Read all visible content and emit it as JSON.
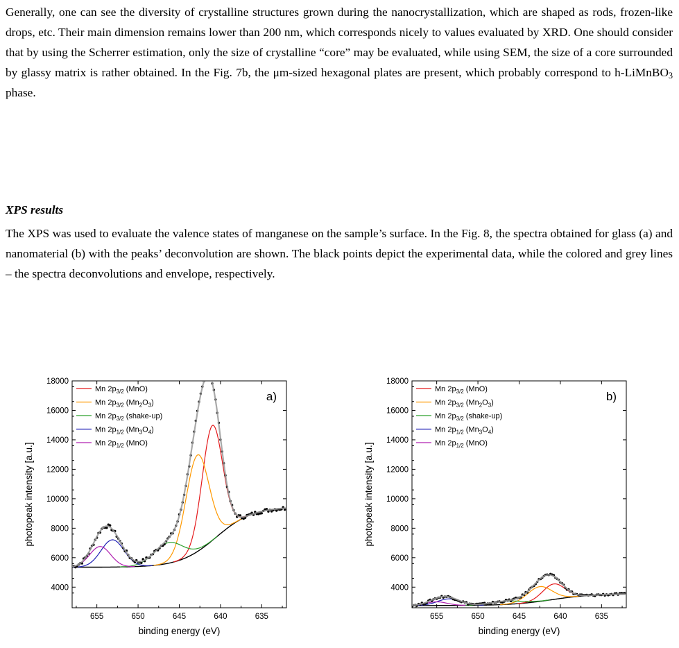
{
  "paragraph1": {
    "before_formula": "Generally, one can see the diversity of crystalline structures grown during the nanocrystallization, which are shaped as rods, frozen-like drops, etc. Their main dimension remains lower than 200 nm, which corresponds nicely to values evaluated by XRD. One should consider that by using the Scherrer estimation, only the size of crystalline “core” may be evaluated, while using SEM, the size of a core surrounded by glassy matrix is rather obtained. In the Fig. 7b, the μm-sized hexagonal plates are present, which probably correspond to h-LiMnBO",
    "formula_sub": "3",
    "after_formula": " phase."
  },
  "heading": "XPS results",
  "paragraph2": "The XPS was used to evaluate the valence states of manganese on the sample’s surface. In the Fig. 8, the spectra obtained for glass (a) and nanomaterial (b) with the peaks’ deconvolution are shown. The black points depict the experimental data, while the colored and grey lines – the spectra deconvolutions and envelope, respectively.",
  "legend": [
    {
      "main": "Mn 2p",
      "sub": "3/2",
      "suffix": " (MnO)",
      "color": "#e41a1c"
    },
    {
      "main": "Mn 2p",
      "sub": "3/2",
      "suffix": " (Mn",
      "sub2": "2",
      "suffix2": "O",
      "sub3": "3",
      "suffix3": ")",
      "color": "#ff9900"
    },
    {
      "main": "Mn 2p",
      "sub": "3/2",
      "suffix": " (shake-up)",
      "color": "#2ca02c"
    },
    {
      "main": "Mn 2p",
      "sub": "1/2",
      "suffix": " (Mn",
      "sub2": "3",
      "suffix2": "O",
      "sub3": "4",
      "suffix3": ")",
      "color": "#1f1fb4"
    },
    {
      "main": "Mn 2p",
      "sub": "1/2",
      "suffix": " (MnO)",
      "color": "#b020b0"
    }
  ],
  "chart_data": [
    {
      "type": "line",
      "panel_label": "a)",
      "xlabel": "binding energy (eV)",
      "ylabel": "photopeak intensity [a.u.]",
      "xlim": [
        658,
        632
      ],
      "ylim": [
        2600,
        18000
      ],
      "xticks": [
        655,
        650,
        645,
        640,
        635
      ],
      "yticks": [
        4000,
        6000,
        8000,
        10000,
        12000,
        14000,
        16000,
        18000
      ],
      "background": {
        "left": 9450,
        "right": 5350,
        "center": 640.5,
        "width": 2.2,
        "mid_level": 8300,
        "mid_slope": 40
      },
      "peaks": [
        {
          "name": "Mn 2p3/2 (MnO)",
          "center": 641.0,
          "height": 7800,
          "fwhm": 2.9
        },
        {
          "name": "Mn 2p3/2 (Mn2O3)",
          "center": 642.8,
          "height": 6550,
          "fwhm": 3.3
        },
        {
          "name": "Mn 2p3/2 (shake-up)",
          "center": 646.3,
          "height": 1400,
          "fwhm": 4.2
        },
        {
          "name": "Mn 2p1/2 (Mn3O4)",
          "center": 653.1,
          "height": 1850,
          "fwhm": 3.3
        },
        {
          "name": "Mn 2p1/2 (MnO)",
          "center": 654.6,
          "height": 1400,
          "fwhm": 3.0
        }
      ]
    },
    {
      "type": "line",
      "panel_label": "b)",
      "xlabel": "binding energy (eV)",
      "ylabel": "photopeak intensity [a.u.]",
      "xlim": [
        658,
        632
      ],
      "ylim": [
        2600,
        18000
      ],
      "xticks": [
        655,
        650,
        645,
        640,
        635
      ],
      "yticks": [
        4000,
        6000,
        8000,
        10000,
        12000,
        14000,
        16000,
        18000
      ],
      "background": {
        "left": 3550,
        "right": 2750,
        "center": 641.0,
        "width": 2.5,
        "mid_level": 3250,
        "mid_slope": 10
      },
      "peaks": [
        {
          "name": "Mn 2p3/2 (MnO)",
          "center": 640.8,
          "height": 1050,
          "fwhm": 3.2
        },
        {
          "name": "Mn 2p3/2 (Mn2O3)",
          "center": 642.5,
          "height": 1000,
          "fwhm": 3.5
        },
        {
          "name": "Mn 2p3/2 (shake-up)",
          "center": 646.5,
          "height": 220,
          "fwhm": 4.5
        },
        {
          "name": "Mn 2p1/2 (Mn3O4)",
          "center": 653.5,
          "height": 450,
          "fwhm": 3.3
        },
        {
          "name": "Mn 2p1/2 (MnO)",
          "center": 655.0,
          "height": 250,
          "fwhm": 3.0
        }
      ]
    }
  ]
}
